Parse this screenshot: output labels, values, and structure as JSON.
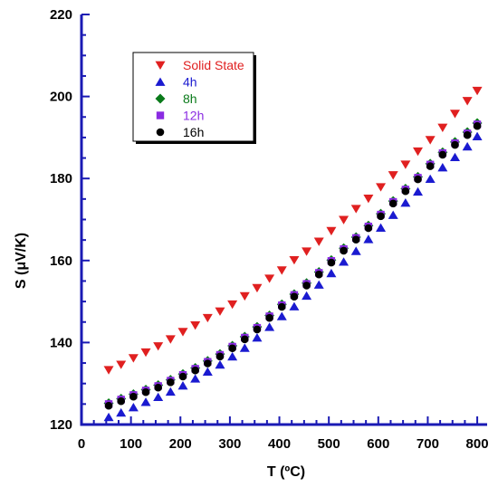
{
  "chart_data": {
    "type": "scatter",
    "xlabel": "T (ºC)",
    "ylabel": "S (μV/K)",
    "xlim": [
      0,
      820
    ],
    "ylim": [
      120,
      220
    ],
    "xticks": [
      0,
      100,
      200,
      300,
      400,
      500,
      600,
      700,
      800
    ],
    "yticks": [
      120,
      140,
      160,
      180,
      200,
      220
    ],
    "legend_position": "top-left",
    "grid": false,
    "series": [
      {
        "name": "Solid State",
        "color": "#e02020",
        "marker": "triangle-down",
        "x": [
          55,
          80,
          105,
          130,
          155,
          180,
          205,
          230,
          255,
          280,
          305,
          330,
          355,
          380,
          405,
          430,
          455,
          480,
          505,
          530,
          555,
          580,
          605,
          630,
          655,
          680,
          705,
          730,
          755,
          780,
          800
        ],
        "y": [
          133.3,
          134.6,
          136.2,
          137.6,
          139.1,
          140.8,
          142.6,
          144.2,
          146.0,
          147.6,
          149.3,
          151.3,
          153.3,
          155.6,
          157.6,
          160.1,
          162.2,
          164.6,
          167.2,
          169.9,
          172.6,
          175.1,
          177.9,
          180.8,
          183.4,
          186.6,
          189.4,
          192.4,
          195.8,
          198.9,
          201.4
        ]
      },
      {
        "name": "4h",
        "color": "#1a1ad0",
        "marker": "triangle-up",
        "x": [
          55,
          80,
          105,
          130,
          155,
          180,
          205,
          230,
          255,
          280,
          305,
          330,
          355,
          380,
          405,
          430,
          455,
          480,
          505,
          530,
          555,
          580,
          605,
          630,
          655,
          680,
          705,
          730,
          755,
          780,
          800
        ],
        "y": [
          121.8,
          122.9,
          124.2,
          125.5,
          126.7,
          128.0,
          129.5,
          131.2,
          132.9,
          134.6,
          136.6,
          138.7,
          141.2,
          143.8,
          146.4,
          148.8,
          151.4,
          154.1,
          156.9,
          159.7,
          162.3,
          165.2,
          168.0,
          171.1,
          174.1,
          176.8,
          179.9,
          182.7,
          185.2,
          187.8,
          190.3
        ]
      },
      {
        "name": "8h",
        "color": "#0a7a1a",
        "marker": "diamond",
        "x": [
          55,
          80,
          105,
          130,
          155,
          180,
          205,
          230,
          255,
          280,
          305,
          330,
          355,
          380,
          405,
          430,
          455,
          480,
          505,
          530,
          555,
          580,
          605,
          630,
          655,
          680,
          705,
          730,
          755,
          780,
          800
        ],
        "y": [
          125.2,
          126.3,
          127.4,
          128.5,
          129.6,
          130.9,
          132.3,
          133.8,
          135.5,
          137.2,
          139.2,
          141.4,
          143.8,
          146.6,
          149.3,
          151.8,
          154.5,
          157.2,
          160.1,
          163.0,
          165.7,
          168.5,
          171.4,
          174.5,
          177.5,
          180.4,
          183.6,
          186.4,
          188.9,
          191.3,
          193.5
        ]
      },
      {
        "name": "12h",
        "color": "#8a2be2",
        "marker": "square",
        "x": [
          55,
          80,
          105,
          130,
          155,
          180,
          205,
          230,
          255,
          280,
          305,
          330,
          355,
          380,
          405,
          430,
          455,
          480,
          505,
          530,
          555,
          580,
          605,
          630,
          655,
          680,
          705,
          730,
          755,
          780,
          800
        ],
        "y": [
          125.0,
          126.1,
          127.2,
          128.3,
          129.4,
          130.7,
          132.1,
          133.6,
          135.3,
          137.0,
          139.0,
          141.2,
          143.6,
          146.4,
          149.1,
          151.6,
          154.3,
          157.0,
          159.9,
          162.8,
          165.5,
          168.3,
          171.2,
          174.3,
          177.3,
          180.2,
          183.4,
          186.2,
          188.6,
          191.0,
          193.2
        ]
      },
      {
        "name": "16h",
        "color": "#000000",
        "marker": "circle",
        "x": [
          55,
          80,
          105,
          130,
          155,
          180,
          205,
          230,
          255,
          280,
          305,
          330,
          355,
          380,
          405,
          430,
          455,
          480,
          505,
          530,
          555,
          580,
          605,
          630,
          655,
          680,
          705,
          730,
          755,
          780,
          800
        ],
        "y": [
          124.6,
          125.7,
          126.8,
          127.9,
          129.0,
          130.3,
          131.7,
          133.2,
          134.9,
          136.6,
          138.6,
          140.8,
          143.2,
          146.0,
          148.7,
          151.2,
          153.9,
          156.6,
          159.5,
          162.4,
          165.1,
          167.9,
          170.8,
          173.9,
          176.9,
          179.8,
          183.0,
          185.8,
          188.2,
          190.6,
          192.8
        ]
      }
    ]
  }
}
